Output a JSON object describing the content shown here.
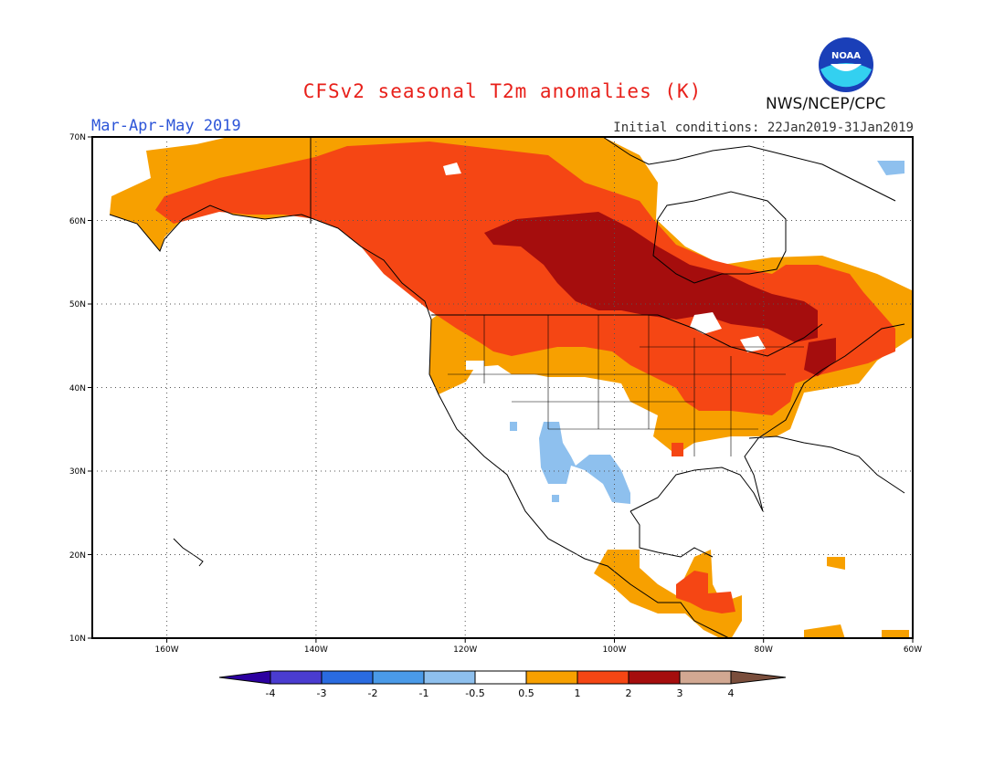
{
  "header": {
    "title": "CFSv2 seasonal T2m anomalies (K)",
    "period": "Mar-Apr-May 2019",
    "initial_conditions": "Initial conditions: 22Jan2019-31Jan2019",
    "agency": "NWS/NCEP/CPC",
    "logo_text": "NOAA"
  },
  "axes": {
    "lat_labels": [
      "70N",
      "60N",
      "50N",
      "40N",
      "30N",
      "20N",
      "10N"
    ],
    "lon_labels": [
      "160W",
      "140W",
      "120W",
      "100W",
      "80W",
      "60W"
    ],
    "lat_range": [
      10,
      70
    ],
    "lon_range": [
      -170,
      -60
    ],
    "grid": true
  },
  "colorbar": {
    "labels": [
      "-4",
      "-3",
      "-2",
      "-1",
      "-0.5",
      "0.5",
      "1",
      "2",
      "3",
      "4"
    ],
    "colors": [
      "#2c00a0",
      "#4a3cd0",
      "#2a6be0",
      "#4a9ae8",
      "#8ec0ee",
      "#ffffff",
      "#f7a000",
      "#f54614",
      "#a50d0d",
      "#d2a892",
      "#7a4e3c"
    ]
  },
  "legend_colors": {
    "orange": "#f7a000",
    "red": "#f54614",
    "darkred": "#a50d0d",
    "lightblue": "#8ec0ee"
  }
}
